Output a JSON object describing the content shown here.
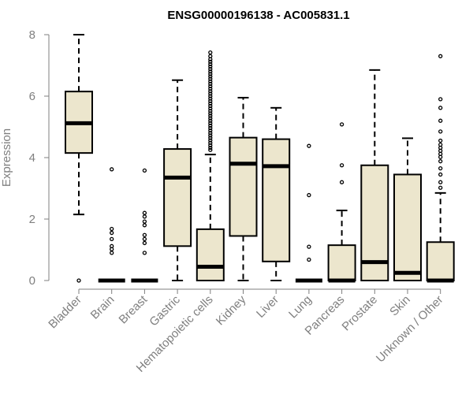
{
  "chart_data": {
    "type": "boxplot",
    "title": "ENSG00000196138 - AC005831.1",
    "xlabel": "",
    "ylabel": "Expression",
    "ylim": [
      0,
      8
    ],
    "yticks": [
      0,
      2,
      4,
      6,
      8
    ],
    "grid": false,
    "legend": "none",
    "box_fill": "#ece6cd",
    "outline": "#000000",
    "axis_text_color": "#7f7f7f",
    "categories": [
      "Bladder",
      "Brain",
      "Breast",
      "Gastric",
      "Hematopoietic cells",
      "Kidney",
      "Liver",
      "Lung",
      "Pancreas",
      "Prostate",
      "Skin",
      "Unknown / Other"
    ],
    "boxes": [
      {
        "min": 2.15,
        "q1": 4.15,
        "median": 5.12,
        "q3": 6.15,
        "max": 8.0,
        "outliers": [
          0.0
        ]
      },
      {
        "min": 0,
        "q1": 0,
        "median": 0,
        "q3": 0,
        "max": 0,
        "outliers": [
          0.9,
          1.02,
          1.12,
          1.35,
          1.55,
          1.68,
          3.62
        ]
      },
      {
        "min": 0,
        "q1": 0,
        "median": 0,
        "q3": 0,
        "max": 0,
        "outliers": [
          0.9,
          1.22,
          1.35,
          1.48,
          1.8,
          1.92,
          2.08,
          2.2,
          3.58
        ]
      },
      {
        "min": 0,
        "q1": 1.12,
        "median": 3.35,
        "q3": 4.28,
        "max": 6.52,
        "outliers": []
      },
      {
        "min": 0,
        "q1": 0,
        "median": 0.45,
        "q3": 1.67,
        "max": 4.1,
        "outliers": [
          4.25,
          4.32,
          4.4,
          4.48,
          4.56,
          4.64,
          4.72,
          4.8,
          4.88,
          4.96,
          5.04,
          5.12,
          5.2,
          5.28,
          5.36,
          5.44,
          5.52,
          5.6,
          5.68,
          5.76,
          5.84,
          5.92,
          6.0,
          6.08,
          6.16,
          6.24,
          6.32,
          6.4,
          6.48,
          6.56,
          6.64,
          6.72,
          6.8,
          6.88,
          6.96,
          7.04,
          7.12,
          7.2,
          7.3,
          7.42
        ]
      },
      {
        "min": 0,
        "q1": 1.45,
        "median": 3.8,
        "q3": 4.65,
        "max": 5.95,
        "outliers": []
      },
      {
        "min": 0,
        "q1": 0.62,
        "median": 3.72,
        "q3": 4.6,
        "max": 5.62,
        "outliers": []
      },
      {
        "min": 0,
        "q1": 0,
        "median": 0,
        "q3": 0,
        "max": 0,
        "outliers": [
          0.68,
          1.1,
          2.78,
          4.38
        ]
      },
      {
        "min": 0,
        "q1": 0,
        "median": 0,
        "q3": 1.15,
        "max": 2.28,
        "outliers": [
          3.2,
          3.75,
          5.08
        ]
      },
      {
        "min": 0,
        "q1": 0,
        "median": 0.6,
        "q3": 3.75,
        "max": 6.85,
        "outliers": []
      },
      {
        "min": 0,
        "q1": 0,
        "median": 0.25,
        "q3": 3.45,
        "max": 4.63,
        "outliers": []
      },
      {
        "min": 0,
        "q1": 0,
        "median": 0,
        "q3": 1.25,
        "max": 2.85,
        "outliers": [
          3.02,
          3.2,
          3.45,
          3.65,
          3.88,
          4.02,
          4.12,
          4.22,
          4.32,
          4.42,
          4.55,
          4.85,
          5.2,
          5.62,
          5.9,
          7.3
        ]
      }
    ]
  }
}
